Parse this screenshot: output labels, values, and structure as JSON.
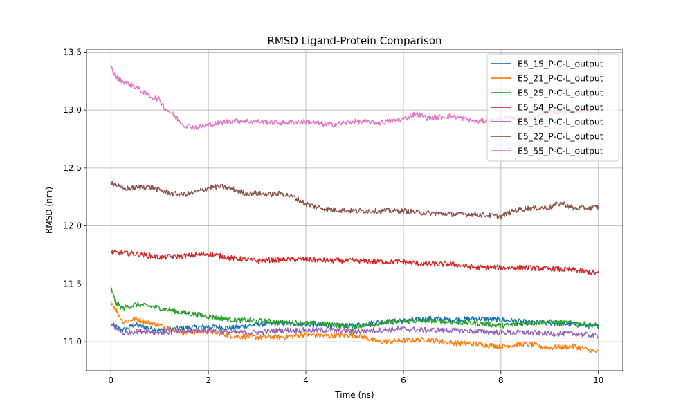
{
  "chart_data": {
    "type": "line",
    "title": "RMSD Ligand-Protein Comparison",
    "xlabel": "Time (ns)",
    "ylabel": "RMSD (nm)",
    "xlim": [
      -0.5,
      10.5
    ],
    "ylim": [
      10.75,
      13.52
    ],
    "xticks": [
      0,
      2,
      4,
      6,
      8,
      10
    ],
    "xtick_labels": [
      "0",
      "2",
      "4",
      "6",
      "8",
      "10"
    ],
    "yticks": [
      11.0,
      11.5,
      12.0,
      12.5,
      13.0,
      13.5
    ],
    "ytick_labels": [
      "11.0",
      "11.5",
      "12.0",
      "12.5",
      "13.0",
      "13.5"
    ],
    "grid": true,
    "legend_position": "top-right",
    "series": [
      {
        "name": "E5_15_P-C-L_output",
        "color": "#1f77b4",
        "x": [
          0,
          0.25,
          0.5,
          0.75,
          1,
          1.5,
          2,
          2.5,
          3,
          3.5,
          4,
          4.5,
          5,
          5.5,
          6,
          6.5,
          7,
          7.5,
          8,
          8.5,
          9,
          9.5,
          10
        ],
        "y": [
          11.15,
          11.1,
          11.15,
          11.12,
          11.1,
          11.12,
          11.13,
          11.12,
          11.15,
          11.16,
          11.15,
          11.14,
          11.14,
          11.17,
          11.18,
          11.2,
          11.19,
          11.2,
          11.19,
          11.17,
          11.16,
          11.15,
          11.13
        ]
      },
      {
        "name": "E5_21_P-C-L_output",
        "color": "#ff7f0e",
        "x": [
          0,
          0.25,
          0.5,
          0.75,
          1,
          1.5,
          2,
          2.5,
          3,
          3.5,
          4,
          4.5,
          5,
          5.5,
          6,
          6.5,
          7,
          7.5,
          8,
          8.5,
          9,
          9.5,
          10
        ],
        "y": [
          11.35,
          11.17,
          11.2,
          11.17,
          11.14,
          11.08,
          11.09,
          11.05,
          11.04,
          11.04,
          11.06,
          11.05,
          11.06,
          11.0,
          11.01,
          11.02,
          10.99,
          10.98,
          10.96,
          10.98,
          10.95,
          10.96,
          10.91
        ]
      },
      {
        "name": "E5_25_P-C-L_output",
        "color": "#2ca02c",
        "x": [
          0,
          0.1,
          0.25,
          0.5,
          0.75,
          1,
          1.5,
          2,
          2.5,
          3,
          3.5,
          4,
          4.5,
          5,
          5.5,
          6,
          6.5,
          7,
          7.5,
          8,
          8.5,
          9,
          9.5,
          10
        ],
        "y": [
          11.47,
          11.33,
          11.29,
          11.32,
          11.31,
          11.29,
          11.25,
          11.22,
          11.19,
          11.18,
          11.17,
          11.16,
          11.15,
          11.13,
          11.16,
          11.18,
          11.18,
          11.17,
          11.16,
          11.14,
          11.16,
          11.17,
          11.16,
          11.14
        ]
      },
      {
        "name": "E5_54_P-C-L_output",
        "color": "#d62728",
        "x": [
          0,
          0.5,
          1,
          1.5,
          2,
          2.5,
          3,
          3.5,
          4,
          4.5,
          5,
          5.5,
          6,
          6.5,
          7,
          7.5,
          8,
          8.5,
          9,
          9.5,
          10
        ],
        "y": [
          11.77,
          11.76,
          11.73,
          11.74,
          11.76,
          11.72,
          11.7,
          11.71,
          11.71,
          11.7,
          11.7,
          11.69,
          11.69,
          11.67,
          11.67,
          11.64,
          11.64,
          11.64,
          11.63,
          11.62,
          11.59
        ]
      },
      {
        "name": "E5_16_P-C-L_output",
        "color": "#9467bd",
        "x": [
          0,
          0.25,
          0.5,
          0.75,
          1,
          1.5,
          2,
          2.5,
          3,
          3.5,
          4,
          4.5,
          5,
          5.5,
          6,
          6.5,
          7,
          7.5,
          8,
          8.5,
          9,
          9.5,
          10
        ],
        "y": [
          11.15,
          11.07,
          11.09,
          11.09,
          11.08,
          11.09,
          11.1,
          11.08,
          11.08,
          11.1,
          11.1,
          11.1,
          11.09,
          11.1,
          11.11,
          11.1,
          11.1,
          11.09,
          11.08,
          11.08,
          11.07,
          11.07,
          11.05
        ]
      },
      {
        "name": "E5_22_P-C-L_output",
        "color": "#8c564b",
        "x": [
          0,
          0.25,
          0.5,
          0.75,
          1,
          1.25,
          1.5,
          1.75,
          2,
          2.25,
          2.5,
          2.75,
          3,
          3.25,
          3.5,
          3.75,
          4,
          4.25,
          4.5,
          5,
          5.5,
          6,
          6.5,
          7,
          7.5,
          8,
          8.25,
          8.5,
          9,
          9.25,
          9.5,
          10
        ],
        "y": [
          12.38,
          12.32,
          12.33,
          12.34,
          12.31,
          12.28,
          12.27,
          12.29,
          12.33,
          12.34,
          12.32,
          12.28,
          12.28,
          12.27,
          12.28,
          12.25,
          12.19,
          12.16,
          12.14,
          12.13,
          12.13,
          12.13,
          12.11,
          12.1,
          12.1,
          12.08,
          12.13,
          12.15,
          12.16,
          12.2,
          12.15,
          12.16
        ]
      },
      {
        "name": "E5_55_P-C-L_output",
        "color": "#e377c2",
        "x": [
          0,
          0.1,
          0.25,
          0.5,
          0.75,
          1,
          1.1,
          1.25,
          1.5,
          1.75,
          2,
          2.5,
          3,
          3.5,
          4,
          4.5,
          5,
          5.5,
          6,
          6.25,
          6.5,
          7,
          7.5,
          8,
          8.5,
          9,
          9.5,
          10
        ],
        "y": [
          13.38,
          13.28,
          13.25,
          13.2,
          13.13,
          13.09,
          13.02,
          12.97,
          12.87,
          12.85,
          12.87,
          12.91,
          12.9,
          12.89,
          12.9,
          12.87,
          12.9,
          12.89,
          12.92,
          12.97,
          12.93,
          12.95,
          12.9,
          12.92,
          12.94,
          12.98,
          12.98,
          13.03
        ]
      }
    ]
  }
}
